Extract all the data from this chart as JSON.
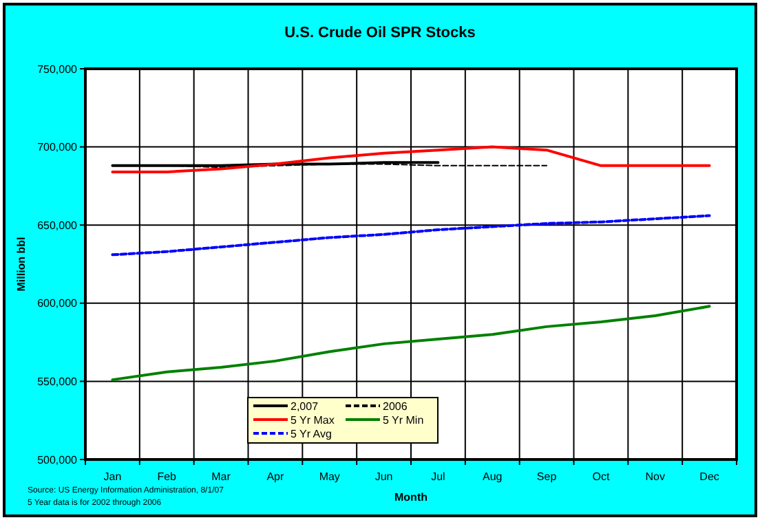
{
  "chart_data": {
    "type": "line",
    "title": "U.S. Crude Oil SPR Stocks",
    "xlabel": "Month",
    "ylabel": "Million bbl",
    "categories": [
      "Jan",
      "Feb",
      "Mar",
      "Apr",
      "May",
      "Jun",
      "Jul",
      "Aug",
      "Sep",
      "Oct",
      "Nov",
      "Dec"
    ],
    "series": [
      {
        "name": "2,007",
        "color": "#000000",
        "line_style": "solid",
        "values": [
          688000,
          688000,
          688000,
          689000,
          689000,
          690000,
          690000,
          null,
          null,
          null,
          null,
          null
        ]
      },
      {
        "name": "2006",
        "color": "#000000",
        "line_style": "dashed",
        "values": [
          688000,
          688000,
          687000,
          688000,
          689000,
          689000,
          688000,
          688000,
          688000,
          null,
          null,
          null
        ]
      },
      {
        "name": "5 Yr Max",
        "color": "#ff0000",
        "line_style": "solid",
        "values": [
          684000,
          684000,
          686000,
          689000,
          693000,
          696000,
          698000,
          700000,
          698000,
          688000,
          688000,
          688000
        ]
      },
      {
        "name": "5 Yr Min",
        "color": "#008000",
        "line_style": "solid",
        "values": [
          551000,
          556000,
          559000,
          563000,
          569000,
          574000,
          577000,
          580000,
          585000,
          588000,
          592000,
          598000
        ]
      },
      {
        "name": "5 Yr Avg",
        "color": "#0000ff",
        "line_style": "dashed",
        "values": [
          631000,
          633000,
          636000,
          639000,
          642000,
          644000,
          647000,
          649000,
          651000,
          652000,
          654000,
          656000
        ]
      }
    ],
    "ylim": [
      500000,
      750000
    ],
    "yticks": [
      {
        "value": 500000,
        "label": "500,000"
      },
      {
        "value": 550000,
        "label": "550,000"
      },
      {
        "value": 600000,
        "label": "600,000"
      },
      {
        "value": 650000,
        "label": "650,000"
      },
      {
        "value": 700000,
        "label": "700,000"
      },
      {
        "value": 750000,
        "label": "750,000"
      }
    ],
    "grid": true,
    "legend": "bottom",
    "annotations": [
      "Source:  US Energy Information Administration, 8/1/07",
      "5 Year data is for 2002 through 2006"
    ]
  }
}
